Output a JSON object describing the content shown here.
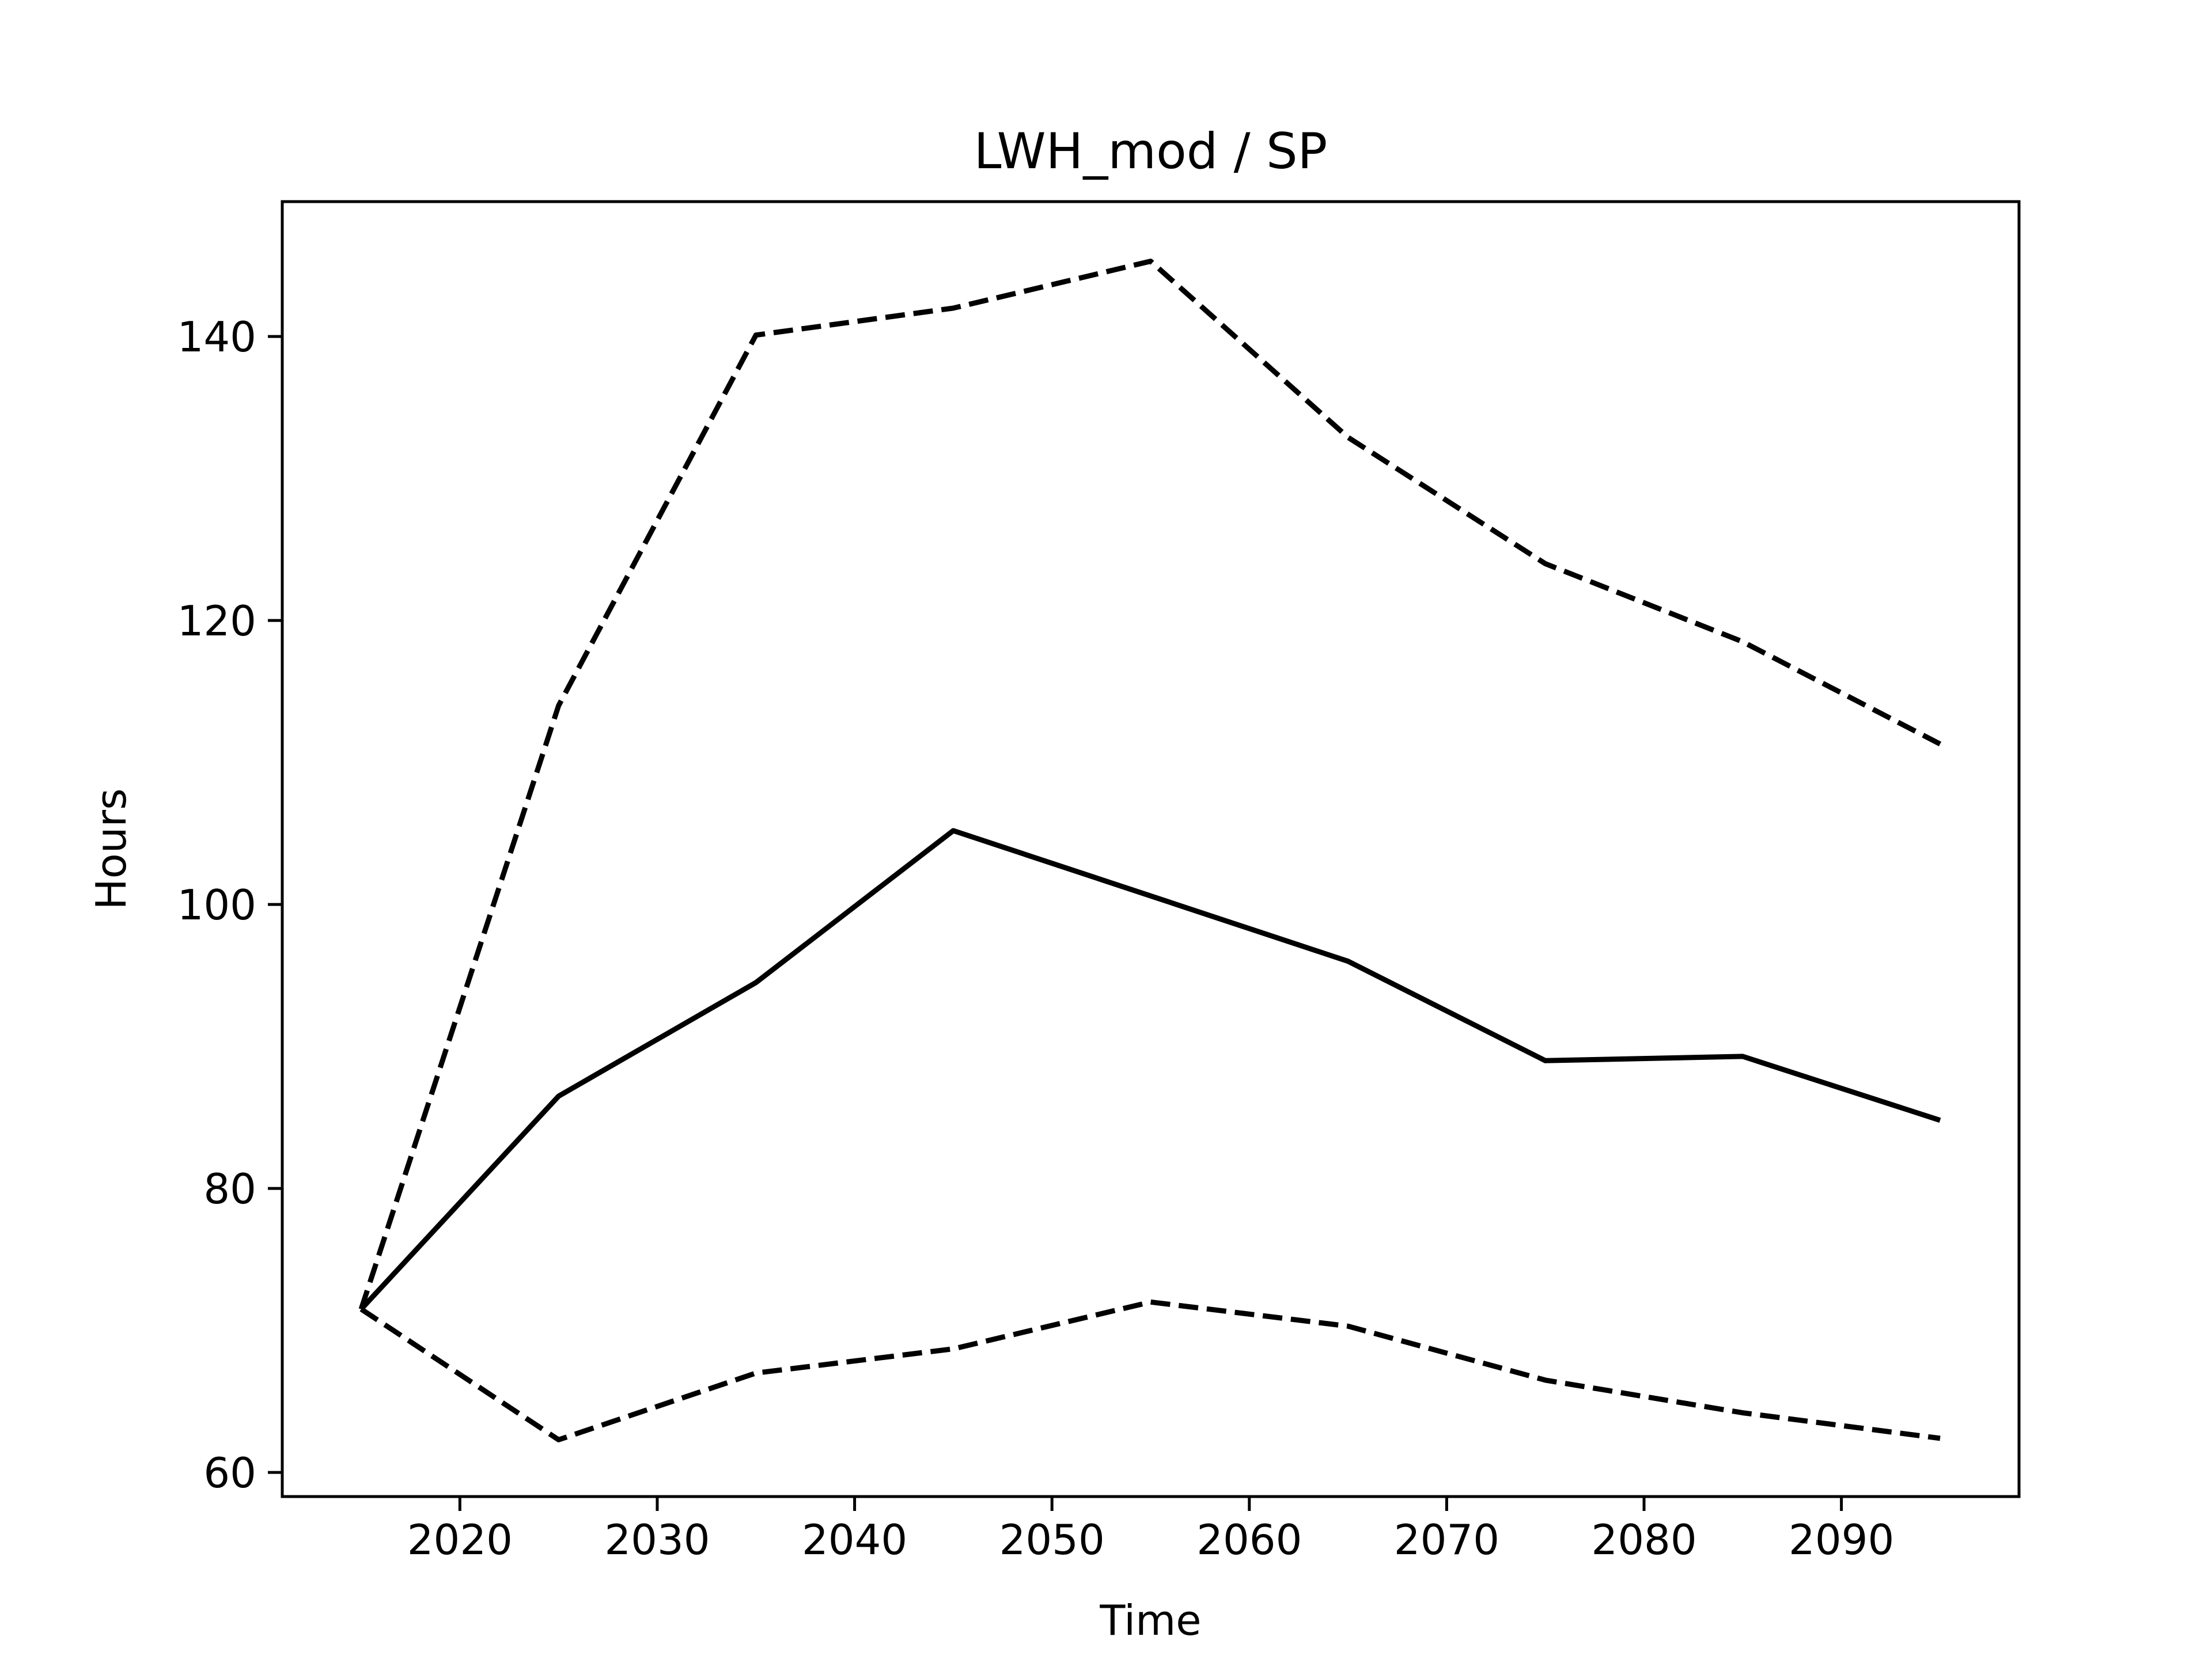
{
  "chart_data": {
    "type": "line",
    "title": "LWH_mod / SP",
    "xlabel": "Time",
    "ylabel": "Hours",
    "xlim": [
      2011,
      2099
    ],
    "ylim": [
      58.3,
      149.5
    ],
    "xticks": [
      2020,
      2030,
      2040,
      2050,
      2060,
      2070,
      2080,
      2090
    ],
    "yticks": [
      60,
      80,
      100,
      120,
      140
    ],
    "grid": false,
    "legend": false,
    "x": [
      2015,
      2025,
      2035,
      2045,
      2055,
      2065,
      2075,
      2085,
      2095
    ],
    "series": [
      {
        "style": "solid",
        "color": "#000000",
        "values": [
          71.5,
          86.5,
          94.5,
          105.2,
          100.6,
          96.0,
          89.0,
          89.3,
          84.8
        ]
      },
      {
        "style": "dashed",
        "color": "#000000",
        "values": [
          71.5,
          114.0,
          140.1,
          142.0,
          145.3,
          132.9,
          124.0,
          118.5,
          111.3
        ]
      },
      {
        "style": "dashed",
        "color": "#000000",
        "values": [
          71.5,
          62.3,
          67.0,
          68.7,
          72.0,
          70.3,
          66.5,
          64.2,
          62.4
        ]
      }
    ]
  }
}
